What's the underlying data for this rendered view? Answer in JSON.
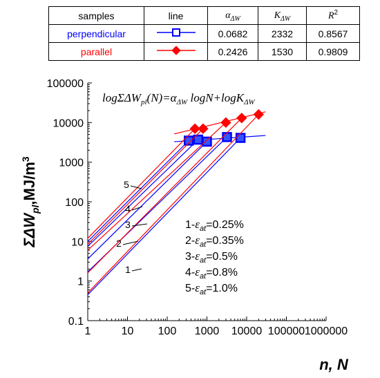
{
  "table": {
    "headers": {
      "samples": "samples",
      "line": "line",
      "alpha": "α",
      "alpha_sub": "ΔW",
      "k": "K",
      "k_sub": "ΔW",
      "r2": "R",
      "r2_sup": "2"
    },
    "rows": [
      {
        "name": "perpendicular",
        "color": "#0000ff",
        "marker": "square",
        "alpha": "0.0682",
        "k": "2332",
        "r2": "0.8567"
      },
      {
        "name": "parallel",
        "color": "#ff0000",
        "marker": "diamond",
        "alpha": "0.2426",
        "k": "1530",
        "r2": "0.9809"
      }
    ]
  },
  "chart_data": {
    "type": "scatter",
    "xscale": "log",
    "yscale": "log",
    "xlim": [
      1,
      1000000
    ],
    "ylim": [
      0.1,
      100000
    ],
    "x_ticks": [
      "1",
      "10",
      "100",
      "1000",
      "10000",
      "100000",
      "1000000"
    ],
    "y_ticks": [
      "0.1",
      "1",
      "10",
      "100",
      "1000",
      "10000",
      "100000"
    ],
    "xlabel": "n, N",
    "ylabel": {
      "pre": "ΣΔW",
      "sub": "pl",
      "post": ",MJ/m",
      "sup": "3"
    },
    "equation": "logΣΔWpl(N)=αΔW logN+logKΔW",
    "curve_labels": [
      "1",
      "2",
      "3",
      "4",
      "5"
    ],
    "strain_legend": [
      {
        "index": "1-",
        "eps": "ε",
        "sub": "at",
        "value": "=0.25%"
      },
      {
        "index": "2-",
        "eps": "ε",
        "sub": "at",
        "value": "=0.35%"
      },
      {
        "index": "3-",
        "eps": "ε",
        "sub": "at",
        "value": "=0.5%"
      },
      {
        "index": "4-",
        "eps": "ε",
        "sub": "at",
        "value": "=0.8%"
      },
      {
        "index": "5-",
        "eps": "ε",
        "sub": "at",
        "value": "=1.0%"
      }
    ],
    "series": [
      {
        "name": "perpendicular",
        "color": "#0000ff",
        "marker": "square",
        "accumulation_lines": [
          {
            "from": [
              1,
              0.45
            ],
            "to": [
              7000,
              4100
            ]
          },
          {
            "from": [
              1,
              1.7
            ],
            "to": [
              3200,
              4300
            ]
          },
          {
            "from": [
              1,
              3.6
            ],
            "to": [
              1000,
              3300
            ]
          },
          {
            "from": [
              1,
              7.5
            ],
            "to": [
              600,
              3700
            ]
          },
          {
            "from": [
              1,
              10
            ],
            "to": [
              350,
              3500
            ]
          }
        ],
        "points": [
          [
            350,
            3500
          ],
          [
            600,
            3700
          ],
          [
            1000,
            3300
          ],
          [
            3200,
            4300
          ],
          [
            7000,
            4100
          ]
        ],
        "fit": {
          "alpha": 0.0682,
          "K": 2332,
          "x_range": [
            150,
            30000
          ]
        }
      },
      {
        "name": "parallel",
        "color": "#ff0000",
        "marker": "diamond",
        "accumulation_lines": [
          {
            "from": [
              1,
              0.5
            ],
            "to": [
              20000,
              16000
            ]
          },
          {
            "from": [
              1,
              1.6
            ],
            "to": [
              7500,
              13000
            ]
          },
          {
            "from": [
              1,
              6
            ],
            "to": [
              3000,
              10000
            ]
          },
          {
            "from": [
              1,
              8.5
            ],
            "to": [
              800,
              7000
            ]
          },
          {
            "from": [
              1,
              12
            ],
            "to": [
              500,
              7000
            ]
          }
        ],
        "points": [
          [
            500,
            7000
          ],
          [
            800,
            7000
          ],
          [
            3000,
            10000
          ],
          [
            7500,
            13000
          ],
          [
            20000,
            16000
          ]
        ],
        "fit": {
          "alpha": 0.2426,
          "K": 1530,
          "x_range": [
            150,
            30000
          ]
        }
      }
    ]
  }
}
